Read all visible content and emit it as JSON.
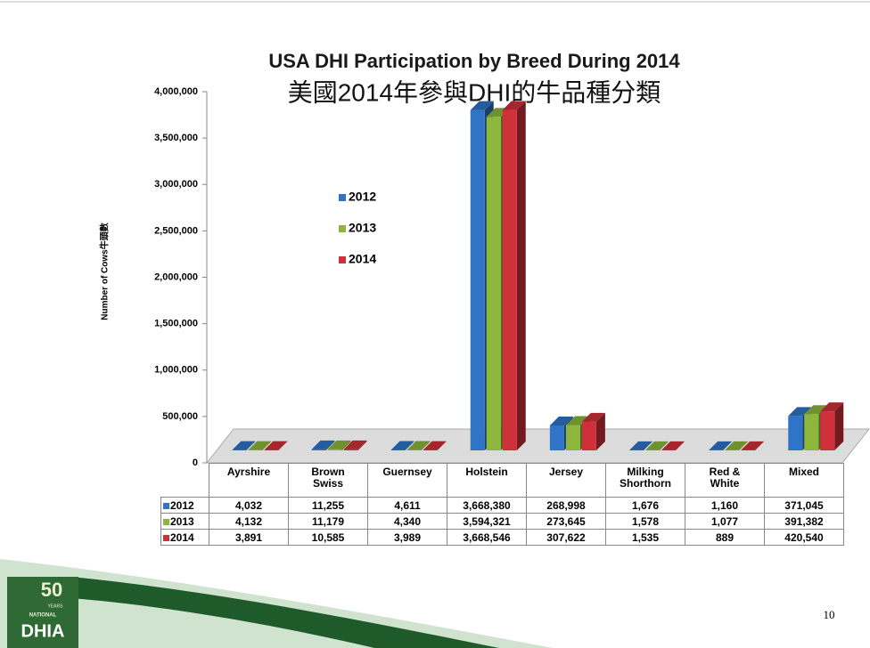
{
  "chart_data": {
    "type": "bar",
    "title": "USA DHI Participation by Breed During 2014",
    "subtitle": "美國2014年參與DHI的牛品種分類",
    "y_label": "Number of Cows牛頭數",
    "categories": [
      "Ayrshire",
      "Brown Swiss",
      "Guernsey",
      "Holstein",
      "Jersey",
      "Milking Shorthorn",
      "Red & White",
      "Mixed"
    ],
    "series": [
      {
        "name": "2012",
        "color": "#2f74c6",
        "values": [
          4032,
          11255,
          4611,
          3668380,
          268998,
          1676,
          1160,
          371045
        ],
        "value_labels": [
          "4,032",
          "11,255",
          "4,611",
          "3,668,380",
          "268,998",
          "1,676",
          "1,160",
          "371,045"
        ]
      },
      {
        "name": "2013",
        "color": "#8cb63c",
        "values": [
          4132,
          11179,
          4340,
          3594321,
          273645,
          1578,
          1077,
          391382
        ],
        "value_labels": [
          "4,132",
          "11,179",
          "4,340",
          "3,594,321",
          "273,645",
          "1,578",
          "1,077",
          "391,382"
        ]
      },
      {
        "name": "2014",
        "color": "#d0303a",
        "values": [
          3891,
          10585,
          3989,
          3668546,
          307622,
          1535,
          889,
          420540
        ],
        "value_labels": [
          "3,891",
          "10,585",
          "3,989",
          "3,668,546",
          "307,622",
          "1,535",
          "889",
          "420,540"
        ]
      }
    ],
    "ylim": [
      0,
      4000000
    ],
    "yticks": [
      0,
      {
        "value": 500000,
        "label": "500,000"
      },
      {
        "value": 1000000,
        "label": "1,000,000"
      },
      {
        "value": 1500000,
        "label": "1,500,000"
      },
      {
        "value": 2000000,
        "label": "2,000,000"
      },
      {
        "value": 2500000,
        "label": "2,500,000"
      },
      {
        "value": 3000000,
        "label": "3,000,000"
      },
      {
        "value": 3500000,
        "label": "3,500,000"
      },
      {
        "value": 4000000,
        "label": "4,000,000"
      }
    ],
    "legend": "upper left",
    "data_table": true
  },
  "page_number": "10",
  "logo": {
    "number": "50",
    "years": "YEARS",
    "national": "NATIONAL",
    "name": "DHIA"
  }
}
